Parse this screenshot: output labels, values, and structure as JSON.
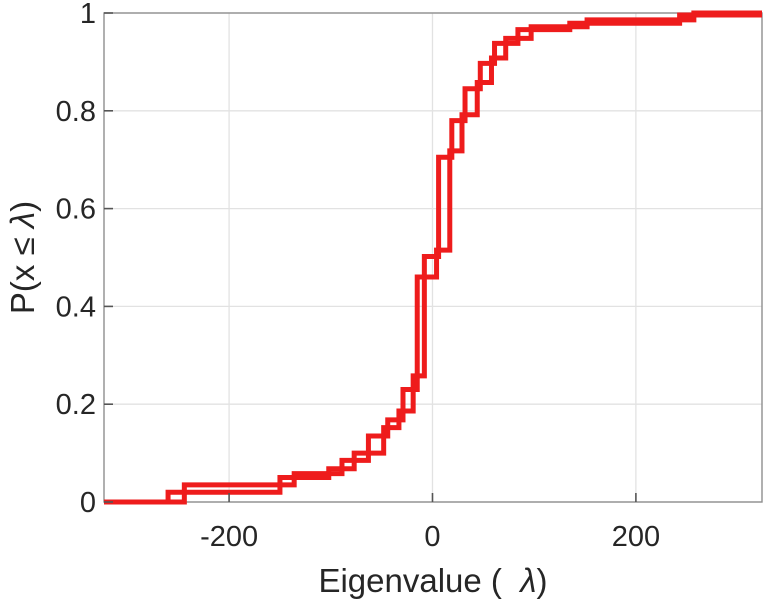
{
  "chart_data": {
    "type": "line",
    "subtype": "empirical-cdf-staircase",
    "title": "",
    "xlabel": "Eigenvalue (  λ)",
    "ylabel": "P(x ≤ λ)",
    "xlim": [
      -323,
      324
    ],
    "ylim": [
      0,
      1
    ],
    "x_ticks": [
      -200,
      0,
      200
    ],
    "x_tick_labels": [
      "-200",
      "0",
      "200"
    ],
    "y_ticks": [
      0,
      0.2,
      0.4,
      0.6,
      0.8,
      1
    ],
    "y_tick_labels": [
      "0",
      "0.2",
      "0.4",
      "0.6",
      "0.8",
      "1"
    ],
    "grid": true,
    "legend": null,
    "series": [
      {
        "name": "eigenvalue-ecdf",
        "color": "#ee1c1c",
        "line_width": 5,
        "start_x": -323,
        "end_x": 324,
        "jumps": [
          {
            "x": -260,
            "f": 0.02
          },
          {
            "x": -244,
            "f": 0.035
          },
          {
            "x": -150,
            "f": 0.05
          },
          {
            "x": -136,
            "f": 0.058
          },
          {
            "x": -102,
            "f": 0.068
          },
          {
            "x": -89,
            "f": 0.085
          },
          {
            "x": -77,
            "f": 0.1
          },
          {
            "x": -63,
            "f": 0.135
          },
          {
            "x": -48,
            "f": 0.152
          },
          {
            "x": -44,
            "f": 0.168
          },
          {
            "x": -33,
            "f": 0.186
          },
          {
            "x": -29,
            "f": 0.23
          },
          {
            "x": -19,
            "f": 0.258
          },
          {
            "x": -15,
            "f": 0.46
          },
          {
            "x": -8,
            "f": 0.502
          },
          {
            "x": 4,
            "f": 0.515
          },
          {
            "x": 6,
            "f": 0.705
          },
          {
            "x": 17,
            "f": 0.718
          },
          {
            "x": 19,
            "f": 0.78
          },
          {
            "x": 29,
            "f": 0.792
          },
          {
            "x": 32,
            "f": 0.845
          },
          {
            "x": 44,
            "f": 0.858
          },
          {
            "x": 47,
            "f": 0.897
          },
          {
            "x": 58,
            "f": 0.908
          },
          {
            "x": 61,
            "f": 0.938
          },
          {
            "x": 72,
            "f": 0.948
          },
          {
            "x": 84,
            "f": 0.966
          },
          {
            "x": 97,
            "f": 0.972
          },
          {
            "x": 135,
            "f": 0.979
          },
          {
            "x": 152,
            "f": 0.986
          },
          {
            "x": 243,
            "f": 0.996
          },
          {
            "x": 257,
            "f": 1.0
          }
        ]
      }
    ],
    "colors": {
      "curve": "#ee1c1c",
      "grid": "#e2e2e2",
      "axis_box": "#8f8f8f",
      "tick": "#555555",
      "text": "#262626",
      "background": "#ffffff"
    }
  }
}
